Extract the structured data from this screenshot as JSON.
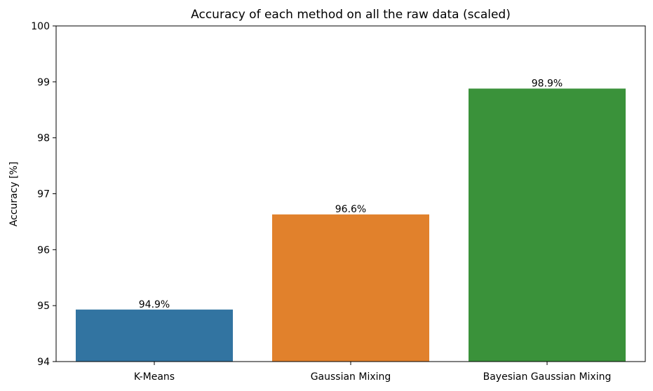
{
  "chart_data": {
    "type": "bar",
    "title": "Accuracy of each method on all the raw data (scaled)",
    "xlabel": "",
    "ylabel": "Accuracy [%]",
    "categories": [
      "K-Means",
      "Gaussian Mixing",
      "Bayesian Gaussian Mixing"
    ],
    "values": [
      94.93,
      96.63,
      98.88
    ],
    "data_labels": [
      "94.9%",
      "96.6%",
      "98.9%"
    ],
    "colors": [
      "#3274a1",
      "#e1812c",
      "#3a923a"
    ],
    "ylim": [
      94,
      100
    ],
    "yticks": [
      94,
      95,
      96,
      97,
      98,
      99,
      100
    ],
    "grid": false,
    "legend": "none"
  }
}
